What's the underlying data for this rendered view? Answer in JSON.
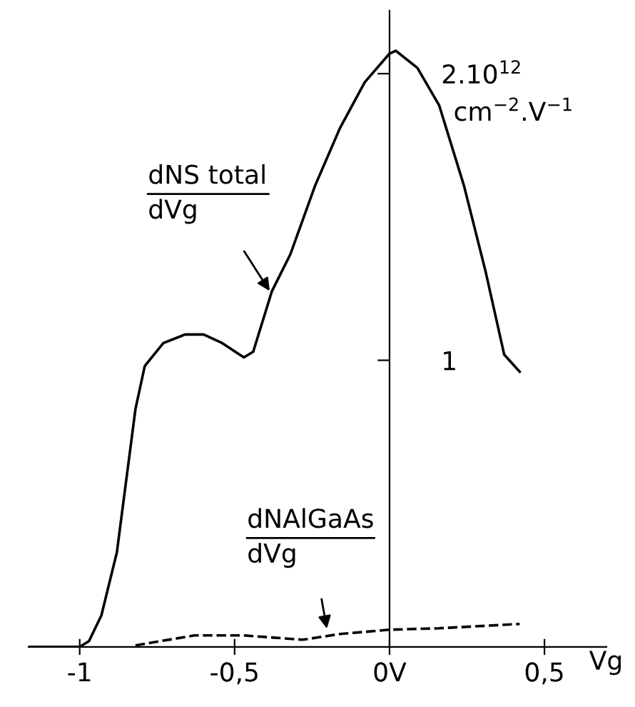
{
  "chart_data": {
    "type": "line",
    "xlabel": "Vg",
    "series": [
      {
        "color": "#000000",
        "line_style": "solid",
        "x": [
          -1.165,
          -1.0,
          -0.97,
          -0.93,
          -0.88,
          -0.85,
          -0.82,
          -0.79,
          -0.73,
          -0.66,
          -0.6,
          -0.54,
          -0.47,
          -0.44,
          -0.38,
          -0.32,
          -0.24,
          -0.16,
          -0.08,
          0.0,
          0.02,
          0.09,
          0.16,
          0.24,
          0.31,
          0.37,
          0.42
        ],
        "values": [
          0,
          0,
          0.02,
          0.11,
          0.33,
          0.58,
          0.83,
          0.98,
          1.06,
          1.09,
          1.09,
          1.06,
          1.01,
          1.03,
          1.24,
          1.37,
          1.61,
          1.81,
          1.97,
          2.07,
          2.08,
          2.02,
          1.89,
          1.61,
          1.31,
          1.02,
          0.96
        ]
      },
      {
        "color": "#000000",
        "line_style": "dashed",
        "x": [
          -0.82,
          -0.74,
          -0.63,
          -0.47,
          -0.28,
          -0.16,
          0.0,
          0.16,
          0.42
        ],
        "values": [
          0.005,
          0.02,
          0.04,
          0.04,
          0.025,
          0.045,
          0.06,
          0.065,
          0.08
        ]
      }
    ],
    "xlim": [
      -1.165,
      0.7
    ],
    "ylim": [
      0,
      2.22
    ],
    "xticks": [
      {
        "value": -1,
        "label": "-1"
      },
      {
        "value": -0.5,
        "label": "-0,5"
      },
      {
        "value": 0,
        "label": "0V"
      },
      {
        "value": 0.5,
        "label": "0,5"
      }
    ],
    "yticks": [
      1,
      2
    ],
    "annotations": [
      {
        "text": "dNS total\ndVg",
        "x": -0.38,
        "y": 1.23
      },
      {
        "text": "dNAlGaAs\ndVg",
        "x": -0.2,
        "y": 0.05
      },
      ".10$^{12}$",
      "cm$^{−2}$.V$^{−1}$"
    ],
    "grid": false,
    "legend": false,
    "marker": "none"
  }
}
